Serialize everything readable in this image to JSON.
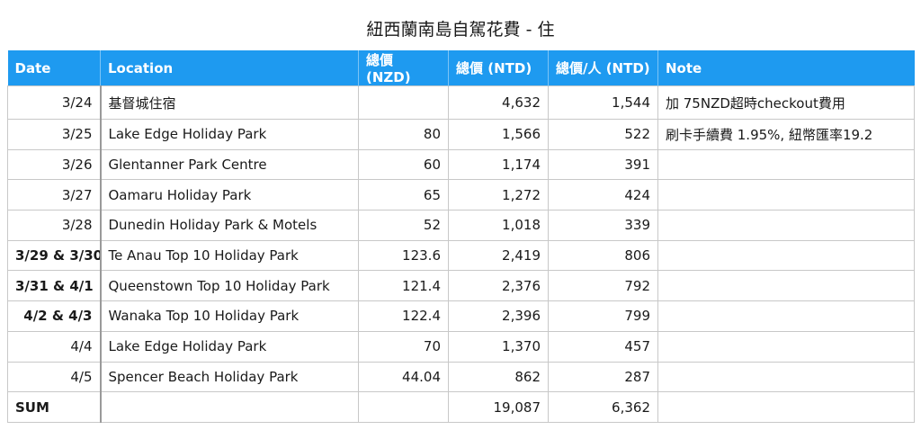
{
  "title": "紐西蘭南島自駕花費 - 住",
  "columns": [
    "Date",
    "Location",
    "總價 (NZD)",
    "總價 (NTD)",
    "總價/人 (NTD)",
    "Note"
  ],
  "rows": [
    {
      "date": "3/24",
      "location": "基督城住宿",
      "nzd": "",
      "ntd": "4,632",
      "per": "1,544",
      "note": "加 75NZD超時checkout費用",
      "bold": false
    },
    {
      "date": "3/25",
      "location": "Lake Edge Holiday Park",
      "nzd": "80",
      "ntd": "1,566",
      "per": "522",
      "note": "刷卡手續費 1.95%, 紐幣匯率19.2",
      "bold": false
    },
    {
      "date": "3/26",
      "location": "Glentanner Park Centre",
      "nzd": "60",
      "ntd": "1,174",
      "per": "391",
      "note": "",
      "bold": false
    },
    {
      "date": "3/27",
      "location": "Oamaru Holiday Park",
      "nzd": "65",
      "ntd": "1,272",
      "per": "424",
      "note": "",
      "bold": false
    },
    {
      "date": "3/28",
      "location": "Dunedin Holiday Park & Motels",
      "nzd": "52",
      "ntd": "1,018",
      "per": "339",
      "note": "",
      "bold": false
    },
    {
      "date": "3/29 & 3/30",
      "location": "Te Anau Top 10 Holiday Park",
      "nzd": "123.6",
      "ntd": "2,419",
      "per": "806",
      "note": "",
      "bold": true
    },
    {
      "date": "3/31 & 4/1",
      "location": "Queenstown Top 10 Holiday Park",
      "nzd": "121.4",
      "ntd": "2,376",
      "per": "792",
      "note": "",
      "bold": true
    },
    {
      "date": "4/2 & 4/3",
      "location": "Wanaka Top 10 Holiday Park",
      "nzd": "122.4",
      "ntd": "2,396",
      "per": "799",
      "note": "",
      "bold": true
    },
    {
      "date": "4/4",
      "location": "Lake Edge Holiday Park",
      "nzd": "70",
      "ntd": "1,370",
      "per": "457",
      "note": "",
      "bold": false
    },
    {
      "date": "4/5",
      "location": "Spencer Beach Holiday Park",
      "nzd": "44.04",
      "ntd": "862",
      "per": "287",
      "note": "",
      "bold": false
    }
  ],
  "sum": {
    "label": "SUM",
    "location": "",
    "nzd": "",
    "ntd": "19,087",
    "per": "6,362",
    "note": ""
  }
}
